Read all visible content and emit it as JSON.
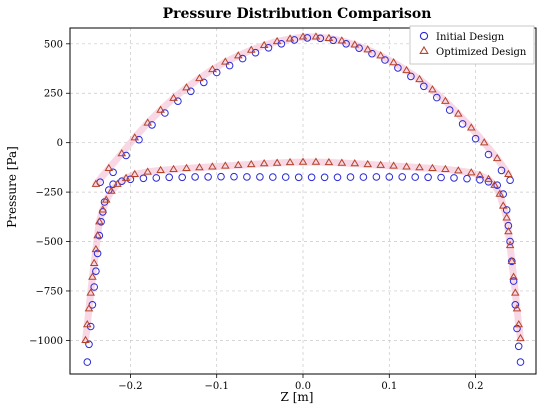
{
  "chart_data": {
    "type": "scatter",
    "title": "Pressure Distribution Comparison",
    "xlabel": "Z [m]",
    "ylabel": "Pressure [Pa]",
    "xlim": [
      -0.27,
      0.27
    ],
    "ylim": [
      -1170,
      580
    ],
    "xticks": [
      -0.2,
      -0.1,
      0.0,
      0.1,
      0.2
    ],
    "xtick_labels": [
      "−0.2",
      "−0.1",
      "0.0",
      "0.1",
      "0.2"
    ],
    "yticks": [
      500,
      250,
      0,
      -250,
      -500,
      -750,
      -1000
    ],
    "ytick_labels": [
      "500",
      "250",
      "0",
      "−250",
      "−500",
      "−750",
      "−1000"
    ],
    "grid": true,
    "legend_position": "top-right",
    "colors": {
      "initial": "#2b2bd6",
      "optimized": "#b5432a",
      "halo": "#f4b8cf"
    },
    "series": [
      {
        "name": "Initial Design",
        "marker": "circle",
        "upper_surface": [
          [
            -0.235,
            -200
          ],
          [
            -0.22,
            -150
          ],
          [
            -0.205,
            -65
          ],
          [
            -0.19,
            15
          ],
          [
            -0.175,
            90
          ],
          [
            -0.16,
            150
          ],
          [
            -0.145,
            210
          ],
          [
            -0.13,
            260
          ],
          [
            -0.115,
            305
          ],
          [
            -0.1,
            355
          ],
          [
            -0.085,
            390
          ],
          [
            -0.07,
            425
          ],
          [
            -0.055,
            455
          ],
          [
            -0.04,
            480
          ],
          [
            -0.025,
            500
          ],
          [
            -0.01,
            520
          ],
          [
            0.005,
            530
          ],
          [
            0.02,
            528
          ],
          [
            0.035,
            518
          ],
          [
            0.05,
            500
          ],
          [
            0.065,
            478
          ],
          [
            0.08,
            450
          ],
          [
            0.095,
            418
          ],
          [
            0.11,
            378
          ],
          [
            0.125,
            335
          ],
          [
            0.14,
            285
          ],
          [
            0.155,
            228
          ],
          [
            0.17,
            165
          ],
          [
            0.185,
            95
          ],
          [
            0.2,
            20
          ],
          [
            0.215,
            -60
          ],
          [
            0.23,
            -140
          ],
          [
            0.24,
            -190
          ]
        ],
        "lower_surface": [
          [
            -0.25,
            -1110
          ],
          [
            -0.248,
            -1020
          ],
          [
            -0.246,
            -930
          ],
          [
            -0.244,
            -820
          ],
          [
            -0.242,
            -730
          ],
          [
            -0.24,
            -650
          ],
          [
            -0.238,
            -560
          ],
          [
            -0.236,
            -470
          ],
          [
            -0.234,
            -400
          ],
          [
            -0.232,
            -350
          ],
          [
            -0.23,
            -300
          ],
          [
            -0.225,
            -240
          ],
          [
            -0.22,
            -210
          ],
          [
            -0.21,
            -195
          ],
          [
            -0.2,
            -185
          ],
          [
            -0.185,
            -180
          ],
          [
            -0.17,
            -178
          ],
          [
            -0.155,
            -175
          ],
          [
            -0.14,
            -175
          ],
          [
            -0.125,
            -173
          ],
          [
            -0.11,
            -173
          ],
          [
            -0.095,
            -172
          ],
          [
            -0.08,
            -172
          ],
          [
            -0.065,
            -173
          ],
          [
            -0.05,
            -173
          ],
          [
            -0.035,
            -174
          ],
          [
            -0.02,
            -174
          ],
          [
            -0.005,
            -175
          ],
          [
            0.01,
            -175
          ],
          [
            0.025,
            -175
          ],
          [
            0.04,
            -175
          ],
          [
            0.055,
            -174
          ],
          [
            0.07,
            -174
          ],
          [
            0.085,
            -173
          ],
          [
            0.1,
            -173
          ],
          [
            0.115,
            -173
          ],
          [
            0.13,
            -174
          ],
          [
            0.145,
            -175
          ],
          [
            0.16,
            -176
          ],
          [
            0.175,
            -178
          ],
          [
            0.19,
            -182
          ],
          [
            0.205,
            -188
          ],
          [
            0.215,
            -198
          ],
          [
            0.225,
            -215
          ],
          [
            0.232,
            -260
          ],
          [
            0.236,
            -340
          ],
          [
            0.238,
            -420
          ],
          [
            0.24,
            -500
          ],
          [
            0.242,
            -600
          ],
          [
            0.244,
            -700
          ],
          [
            0.246,
            -820
          ],
          [
            0.248,
            -940
          ],
          [
            0.25,
            -1030
          ],
          [
            0.252,
            -1110
          ]
        ]
      },
      {
        "name": "Optimized Design",
        "marker": "triangle",
        "upper_surface": [
          [
            -0.24,
            -210
          ],
          [
            -0.225,
            -130
          ],
          [
            -0.21,
            -55
          ],
          [
            -0.195,
            25
          ],
          [
            -0.18,
            100
          ],
          [
            -0.165,
            165
          ],
          [
            -0.15,
            225
          ],
          [
            -0.135,
            278
          ],
          [
            -0.12,
            325
          ],
          [
            -0.105,
            370
          ],
          [
            -0.09,
            408
          ],
          [
            -0.075,
            440
          ],
          [
            -0.06,
            468
          ],
          [
            -0.045,
            492
          ],
          [
            -0.03,
            512
          ],
          [
            -0.015,
            525
          ],
          [
            0.0,
            535
          ],
          [
            0.015,
            535
          ],
          [
            0.03,
            528
          ],
          [
            0.045,
            515
          ],
          [
            0.06,
            495
          ],
          [
            0.075,
            470
          ],
          [
            0.09,
            440
          ],
          [
            0.105,
            405
          ],
          [
            0.12,
            365
          ],
          [
            0.135,
            320
          ],
          [
            0.15,
            268
          ],
          [
            0.165,
            210
          ],
          [
            0.18,
            145
          ],
          [
            0.195,
            75
          ],
          [
            0.21,
            0
          ],
          [
            0.225,
            -80
          ],
          [
            0.238,
            -160
          ]
        ],
        "lower_surface": [
          [
            -0.252,
            -1000
          ],
          [
            -0.25,
            -920
          ],
          [
            -0.248,
            -840
          ],
          [
            -0.246,
            -760
          ],
          [
            -0.244,
            -680
          ],
          [
            -0.242,
            -610
          ],
          [
            -0.24,
            -540
          ],
          [
            -0.238,
            -470
          ],
          [
            -0.236,
            -400
          ],
          [
            -0.232,
            -340
          ],
          [
            -0.228,
            -290
          ],
          [
            -0.222,
            -245
          ],
          [
            -0.215,
            -210
          ],
          [
            -0.205,
            -180
          ],
          [
            -0.195,
            -160
          ],
          [
            -0.18,
            -148
          ],
          [
            -0.165,
            -140
          ],
          [
            -0.15,
            -135
          ],
          [
            -0.135,
            -130
          ],
          [
            -0.12,
            -126
          ],
          [
            -0.105,
            -122
          ],
          [
            -0.09,
            -118
          ],
          [
            -0.075,
            -114
          ],
          [
            -0.06,
            -110
          ],
          [
            -0.045,
            -106
          ],
          [
            -0.03,
            -103
          ],
          [
            -0.015,
            -100
          ],
          [
            0.0,
            -98
          ],
          [
            0.015,
            -98
          ],
          [
            0.03,
            -100
          ],
          [
            0.045,
            -103
          ],
          [
            0.06,
            -106
          ],
          [
            0.075,
            -110
          ],
          [
            0.09,
            -114
          ],
          [
            0.105,
            -118
          ],
          [
            0.12,
            -122
          ],
          [
            0.135,
            -126
          ],
          [
            0.15,
            -130
          ],
          [
            0.165,
            -135
          ],
          [
            0.18,
            -142
          ],
          [
            0.195,
            -152
          ],
          [
            0.205,
            -165
          ],
          [
            0.215,
            -185
          ],
          [
            0.222,
            -215
          ],
          [
            0.228,
            -260
          ],
          [
            0.232,
            -320
          ],
          [
            0.236,
            -380
          ],
          [
            0.238,
            -450
          ],
          [
            0.24,
            -520
          ],
          [
            0.242,
            -600
          ],
          [
            0.244,
            -680
          ],
          [
            0.246,
            -760
          ],
          [
            0.248,
            -840
          ],
          [
            0.25,
            -920
          ],
          [
            0.252,
            -990
          ]
        ]
      }
    ]
  }
}
